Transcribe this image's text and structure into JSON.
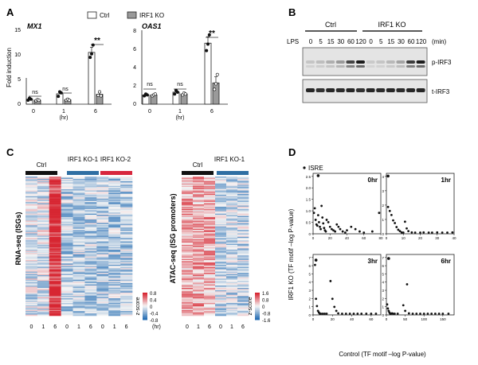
{
  "panels": {
    "a": {
      "letter": "A"
    },
    "b": {
      "letter": "B"
    },
    "c": {
      "letter": "C"
    },
    "d": {
      "letter": "D"
    }
  },
  "panel_a": {
    "ylabel": "Fold induction",
    "legend": [
      "Ctrl",
      "IRF1 KO"
    ],
    "xticks": [
      "0",
      "1",
      "6"
    ],
    "xunit": "(hr)",
    "charts": [
      {
        "title": "MX1",
        "yticks": [
          "0",
          "5",
          "10",
          "15"
        ],
        "ns": [
          "ns",
          "ns"
        ],
        "sig": "**"
      },
      {
        "title": "OAS1",
        "yticks": [
          "0",
          "2",
          "4",
          "6",
          "8"
        ],
        "ns": [
          "ns",
          "ns"
        ],
        "sig": "**"
      }
    ]
  },
  "panel_b": {
    "groups": [
      "Ctrl",
      "IRF1 KO"
    ],
    "lps_label": "LPS",
    "timepoints": [
      "0",
      "5",
      "15",
      "30",
      "60",
      "120",
      "0",
      "5",
      "15",
      "30",
      "60",
      "120"
    ],
    "unit": "(min)",
    "bands": [
      "p-IRF3",
      "t-IRF3"
    ]
  },
  "panel_c": {
    "left_ylabel": "RNA-seq (ISGs)",
    "right_ylabel": "ATAC-seq (ISG promoters)",
    "left_groups": [
      "Ctrl",
      "IRF1 KO-1",
      "IRF1 KO-2"
    ],
    "right_groups": [
      "Ctrl",
      "IRF1 KO-1"
    ],
    "left_xticks": [
      "0",
      "1",
      "6",
      "0",
      "1",
      "6",
      "0",
      "1",
      "6"
    ],
    "right_xticks": [
      "0",
      "1",
      "6",
      "0",
      "1",
      "6"
    ],
    "unit": "(hr)",
    "left_colorbar": {
      "label": "z-score",
      "ticks": [
        "0.8",
        "0.4",
        "0",
        "-0.4",
        "-0.8"
      ]
    },
    "right_colorbar": {
      "label": "z-score",
      "ticks": [
        "1.6",
        "0.8",
        "0",
        "-0.8",
        "-1.6"
      ]
    }
  },
  "panel_d": {
    "legend": "ISRE",
    "xlabel": "Control (TF motif –log P-value)",
    "ylabel": "IRF1 KO (TF motif –log P-value)",
    "plots": [
      {
        "title": "0hr",
        "yticks": [
          "0",
          "0.5",
          "1.0",
          "1.5",
          "2.0",
          "2.5"
        ],
        "xticks": [
          "0",
          "20",
          "40",
          "60",
          "80"
        ]
      },
      {
        "title": "1hr",
        "yticks": [
          "0",
          "1",
          "2",
          "3",
          "4"
        ],
        "xticks": [
          "0",
          "10",
          "20",
          "30",
          "40"
        ]
      },
      {
        "title": "3hr",
        "yticks": [
          "0",
          "1",
          "2",
          "3",
          "4",
          "5",
          "6",
          "7"
        ],
        "xticks": [
          "0",
          "20",
          "40",
          "60"
        ]
      },
      {
        "title": "6hr",
        "yticks": [
          "0",
          "1",
          "2",
          "3",
          "4",
          "5",
          "6",
          "7"
        ],
        "xticks": [
          "0",
          "50",
          "100",
          "150"
        ]
      }
    ]
  },
  "chart_data": [
    {
      "type": "bar",
      "title": "MX1",
      "ylabel": "Fold induction",
      "categories": [
        "0",
        "1",
        "6"
      ],
      "ylim": [
        0,
        15
      ],
      "series": [
        {
          "name": "Ctrl",
          "values": [
            1.0,
            2.1,
            10.5
          ],
          "points": [
            [
              0.8,
              1.2,
              1.0
            ],
            [
              1.6,
              2.5,
              2.3
            ],
            [
              9.5,
              10.2,
              12.0
            ]
          ]
        },
        {
          "name": "IRF1 KO",
          "values": [
            0.8,
            0.9,
            2.0
          ],
          "points": [
            [
              0.7,
              0.9,
              0.8
            ],
            [
              0.8,
              1.0,
              0.8
            ],
            [
              1.8,
              2.5,
              1.7
            ]
          ]
        }
      ]
    },
    {
      "type": "bar",
      "title": "OAS1",
      "ylabel": "Fold induction",
      "categories": [
        "0",
        "1",
        "6"
      ],
      "ylim": [
        0,
        8
      ],
      "series": [
        {
          "name": "Ctrl",
          "values": [
            1.0,
            1.3,
            6.6
          ],
          "points": [
            [
              0.9,
              1.1,
              1.0
            ],
            [
              1.1,
              1.5,
              1.3
            ],
            [
              5.8,
              6.5,
              7.5
            ]
          ]
        },
        {
          "name": "IRF1 KO",
          "values": [
            1.0,
            1.1,
            2.3
          ],
          "points": [
            [
              0.9,
              1.0,
              1.1
            ],
            [
              1.0,
              1.2,
              1.1
            ],
            [
              1.6,
              2.2,
              3.2
            ]
          ]
        }
      ]
    },
    {
      "type": "scatter",
      "title": "0hr",
      "xlim": [
        0,
        80
      ],
      "ylim": [
        0,
        2.6
      ],
      "isre": [
        6,
        2.5
      ],
      "points": [
        [
          1,
          0.9
        ],
        [
          2,
          1.1
        ],
        [
          3,
          0.6
        ],
        [
          4,
          0.4
        ],
        [
          5,
          0.35
        ],
        [
          6,
          0.8
        ],
        [
          7,
          0.5
        ],
        [
          8,
          0.3
        ],
        [
          9,
          0.2
        ],
        [
          10,
          1.2
        ],
        [
          11,
          0.7
        ],
        [
          12,
          0.45
        ],
        [
          13,
          0.25
        ],
        [
          14,
          0.15
        ],
        [
          15,
          0.1
        ],
        [
          16,
          0.6
        ],
        [
          18,
          0.5
        ],
        [
          20,
          0.3
        ],
        [
          22,
          0.2
        ],
        [
          24,
          0.15
        ],
        [
          26,
          0.1
        ],
        [
          28,
          0.4
        ],
        [
          30,
          0.3
        ],
        [
          32,
          0.2
        ],
        [
          35,
          0.1
        ],
        [
          38,
          0.05
        ],
        [
          40,
          0.15
        ],
        [
          45,
          0.3
        ],
        [
          50,
          0.2
        ],
        [
          55,
          0.1
        ],
        [
          60,
          0.05
        ],
        [
          70,
          0.1
        ],
        [
          78,
          0.9
        ]
      ]
    },
    {
      "type": "scatter",
      "title": "1hr",
      "xlim": [
        0,
        40
      ],
      "ylim": [
        0,
        4.5
      ],
      "isre": [
        1,
        4.3
      ],
      "points": [
        [
          1,
          2.0
        ],
        [
          2,
          1.7
        ],
        [
          3,
          1.4
        ],
        [
          4,
          1.0
        ],
        [
          5,
          0.8
        ],
        [
          6,
          0.5
        ],
        [
          7,
          0.3
        ],
        [
          8,
          0.2
        ],
        [
          9,
          0.1
        ],
        [
          10,
          0.05
        ],
        [
          11,
          0.9
        ],
        [
          12,
          0.4
        ],
        [
          13,
          0.2
        ],
        [
          15,
          0.1
        ],
        [
          17,
          0.05
        ],
        [
          20,
          0.05
        ],
        [
          22,
          0.1
        ],
        [
          25,
          0.05
        ],
        [
          27,
          0.05
        ],
        [
          30,
          0.1
        ],
        [
          33,
          0.05
        ],
        [
          36,
          0.05
        ],
        [
          39,
          0.1
        ]
      ]
    },
    {
      "type": "scatter",
      "title": "3hr",
      "xlim": [
        0,
        70
      ],
      "ylim": [
        0,
        7.5
      ],
      "isre": [
        3,
        6.8
      ],
      "points": [
        [
          2,
          6.2
        ],
        [
          3,
          2.0
        ],
        [
          4,
          1.1
        ],
        [
          5,
          0.5
        ],
        [
          6,
          0.3
        ],
        [
          7,
          0.1
        ],
        [
          8,
          0.05
        ],
        [
          10,
          0.1
        ],
        [
          12,
          0.05
        ],
        [
          14,
          0.1
        ],
        [
          18,
          4.2
        ],
        [
          20,
          2.0
        ],
        [
          22,
          1.0
        ],
        [
          24,
          0.5
        ],
        [
          26,
          0.2
        ],
        [
          30,
          0.1
        ],
        [
          34,
          0.05
        ],
        [
          38,
          0.1
        ],
        [
          42,
          0.05
        ],
        [
          46,
          0.1
        ],
        [
          50,
          0.1
        ],
        [
          55,
          0.05
        ],
        [
          60,
          0.05
        ],
        [
          65,
          0.1
        ]
      ]
    },
    {
      "type": "scatter",
      "title": "6hr",
      "xlim": [
        0,
        180
      ],
      "ylim": [
        0,
        7.5
      ],
      "isre": [
        6,
        7.0
      ],
      "points": [
        [
          2,
          1.3
        ],
        [
          4,
          0.8
        ],
        [
          6,
          0.5
        ],
        [
          8,
          0.3
        ],
        [
          10,
          0.1
        ],
        [
          12,
          0.05
        ],
        [
          15,
          0.2
        ],
        [
          18,
          0.1
        ],
        [
          22,
          0.05
        ],
        [
          30,
          0.1
        ],
        [
          45,
          1.2
        ],
        [
          50,
          0.5
        ],
        [
          55,
          3.8
        ],
        [
          60,
          0.2
        ],
        [
          70,
          0.1
        ],
        [
          80,
          0.05
        ],
        [
          90,
          0.1
        ],
        [
          100,
          0.05
        ],
        [
          110,
          0.1
        ],
        [
          120,
          0.05
        ],
        [
          130,
          0.1
        ],
        [
          140,
          0.05
        ],
        [
          150,
          0.1
        ],
        [
          165,
          0.05
        ]
      ]
    }
  ]
}
